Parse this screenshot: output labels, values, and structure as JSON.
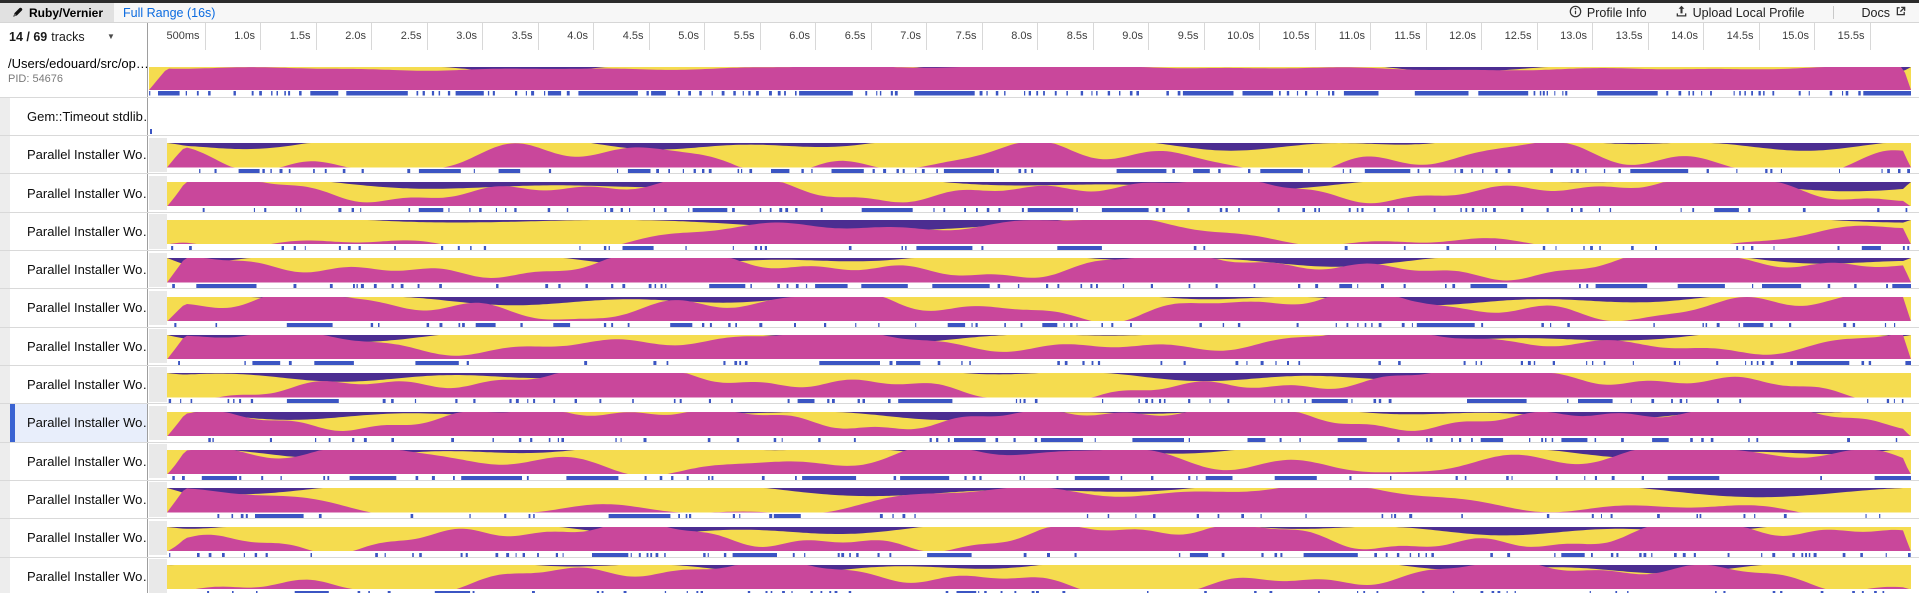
{
  "colors": {
    "magenta": "#c9479b",
    "purple": "#4b2d91",
    "yellow": "#f5dc4f",
    "tick": "#3b55c3",
    "selected_bg": "#e8eefb",
    "selected_bar": "#3a63d2",
    "link": "#0b6be0"
  },
  "header": {
    "tab_label": "Ruby/Vernier",
    "range_label": "Full Range (16s)",
    "actions": {
      "profile_info": "Profile Info",
      "upload": "Upload Local Profile",
      "docs": "Docs"
    }
  },
  "ruler": {
    "tracks_shown": "14 / 69",
    "tracks_suffix": "tracks",
    "tick_labels": [
      "500ms",
      "1.0s",
      "1.5s",
      "2.0s",
      "2.5s",
      "3.0s",
      "3.5s",
      "4.0s",
      "4.5s",
      "5.0s",
      "5.5s",
      "6.0s",
      "6.5s",
      "7.0s",
      "7.5s",
      "8.0s",
      "8.5s",
      "9.0s",
      "9.5s",
      "10.0s",
      "10.5s",
      "11.0s",
      "11.5s",
      "12.0s",
      "12.5s",
      "13.0s",
      "13.5s",
      "14.0s",
      "14.5s",
      "15.0s",
      "15.5s"
    ]
  },
  "tracks": [
    {
      "type": "process",
      "name": "/Users/edouard/src/op…",
      "pid": "PID: 54676",
      "wave": {
        "seed": 1,
        "base": 0.96,
        "amps": [
          0.07,
          0.04,
          0.02
        ],
        "freqs": [
          0.006,
          0.02,
          0.05
        ],
        "pbase": -0.02,
        "pamps": [
          0.16,
          0.1
        ],
        "pfreqs": [
          0.012,
          0.03
        ]
      },
      "ticks": {
        "seed": 20,
        "density": 0.8,
        "dense": 0.5
      }
    },
    {
      "type": "thread-empty",
      "name": "Gem::Timeout stdlib…"
    },
    {
      "type": "thread",
      "name": "Parallel Installer Wo…",
      "selected": false,
      "wave": {
        "seed": 2,
        "base": 0.34,
        "amps": [
          0.46,
          0.28,
          0.12
        ],
        "freqs": [
          0.011,
          0.03,
          0.07
        ],
        "pbase": 0.0,
        "pamps": [
          0.2,
          0.12
        ],
        "pfreqs": [
          0.009,
          0.027
        ]
      },
      "ticks": {
        "seed": 21,
        "density": 0.5,
        "dense": 0.6
      }
    },
    {
      "type": "thread",
      "name": "Parallel Installer Wo…",
      "selected": false,
      "wave": {
        "seed": 3,
        "base": 0.72,
        "amps": [
          0.34,
          0.22,
          0.1
        ],
        "freqs": [
          0.01,
          0.028,
          0.066
        ],
        "pbase": 0.06,
        "pamps": [
          0.2,
          0.12
        ],
        "pfreqs": [
          0.008,
          0.024
        ]
      },
      "ticks": {
        "seed": 22,
        "density": 0.45,
        "dense": 0.4
      }
    },
    {
      "type": "thread",
      "name": "Parallel Installer Wo…",
      "selected": false,
      "wave": {
        "seed": 4,
        "base": 0.4,
        "amps": [
          0.52,
          0.26,
          0.08
        ],
        "freqs": [
          0.006,
          0.018,
          0.045
        ],
        "pbase": -0.05,
        "pamps": [
          0.32,
          0.18
        ],
        "pfreqs": [
          0.005,
          0.016
        ]
      },
      "ticks": {
        "seed": 23,
        "density": 0.3,
        "dense": 0.3
      }
    },
    {
      "type": "thread",
      "name": "Parallel Installer Wo…",
      "selected": false,
      "wave": {
        "seed": 5,
        "base": 0.68,
        "amps": [
          0.36,
          0.22,
          0.1
        ],
        "freqs": [
          0.01,
          0.028,
          0.066
        ],
        "pbase": 0.04,
        "pamps": [
          0.2,
          0.12
        ],
        "pfreqs": [
          0.008,
          0.024
        ]
      },
      "ticks": {
        "seed": 24,
        "density": 0.5,
        "dense": 0.4
      }
    },
    {
      "type": "thread",
      "name": "Parallel Installer Wo…",
      "selected": false,
      "wave": {
        "seed": 6,
        "base": 0.64,
        "amps": [
          0.4,
          0.24,
          0.1
        ],
        "freqs": [
          0.01,
          0.028,
          0.066
        ],
        "pbase": 0.03,
        "pamps": [
          0.2,
          0.12
        ],
        "pfreqs": [
          0.008,
          0.024
        ]
      },
      "ticks": {
        "seed": 25,
        "density": 0.45,
        "dense": 0.35
      }
    },
    {
      "type": "thread",
      "name": "Parallel Installer Wo…",
      "selected": false,
      "wave": {
        "seed": 7,
        "base": 0.74,
        "amps": [
          0.34,
          0.2,
          0.1
        ],
        "freqs": [
          0.01,
          0.028,
          0.066
        ],
        "pbase": 0.05,
        "pamps": [
          0.2,
          0.12
        ],
        "pfreqs": [
          0.008,
          0.024
        ]
      },
      "ticks": {
        "seed": 26,
        "density": 0.4,
        "dense": 0.3
      }
    },
    {
      "type": "thread",
      "name": "Parallel Installer Wo…",
      "selected": false,
      "wave": {
        "seed": 8,
        "base": 0.55,
        "amps": [
          0.44,
          0.26,
          0.1
        ],
        "freqs": [
          0.008,
          0.024,
          0.06
        ],
        "pbase": 0.02,
        "pamps": [
          0.22,
          0.12
        ],
        "pfreqs": [
          0.008,
          0.024
        ]
      },
      "ticks": {
        "seed": 27,
        "density": 0.4,
        "dense": 0.45
      }
    },
    {
      "type": "thread",
      "name": "Parallel Installer Wo…",
      "selected": true,
      "wave": {
        "seed": 9,
        "base": 0.8,
        "amps": [
          0.3,
          0.2,
          0.09
        ],
        "freqs": [
          0.01,
          0.028,
          0.066
        ],
        "pbase": 0.04,
        "pamps": [
          0.18,
          0.11
        ],
        "pfreqs": [
          0.008,
          0.024
        ]
      },
      "ticks": {
        "seed": 28,
        "density": 0.45,
        "dense": 0.4
      }
    },
    {
      "type": "thread",
      "name": "Parallel Installer Wo…",
      "selected": false,
      "wave": {
        "seed": 10,
        "base": 0.62,
        "amps": [
          0.4,
          0.24,
          0.1
        ],
        "freqs": [
          0.01,
          0.028,
          0.066
        ],
        "pbase": 0.03,
        "pamps": [
          0.2,
          0.12
        ],
        "pfreqs": [
          0.008,
          0.024
        ]
      },
      "ticks": {
        "seed": 29,
        "density": 0.45,
        "dense": 0.9
      }
    },
    {
      "type": "thread",
      "name": "Parallel Installer Wo…",
      "selected": false,
      "wave": {
        "seed": 11,
        "base": 0.48,
        "amps": [
          0.5,
          0.26,
          0.1
        ],
        "freqs": [
          0.006,
          0.02,
          0.05
        ],
        "pbase": -0.02,
        "pamps": [
          0.26,
          0.14
        ],
        "pfreqs": [
          0.006,
          0.02
        ]
      },
      "ticks": {
        "seed": 30,
        "density": 0.3,
        "dense": 0.3
      }
    },
    {
      "type": "thread",
      "name": "Parallel Installer Wo…",
      "selected": false,
      "wave": {
        "seed": 12,
        "base": 0.6,
        "amps": [
          0.4,
          0.24,
          0.1
        ],
        "freqs": [
          0.01,
          0.028,
          0.066
        ],
        "pbase": 0.03,
        "pamps": [
          0.2,
          0.12
        ],
        "pfreqs": [
          0.008,
          0.024
        ]
      },
      "ticks": {
        "seed": 31,
        "density": 0.4,
        "dense": 0.35
      }
    },
    {
      "type": "thread",
      "name": "Parallel Installer Wo…",
      "selected": false,
      "wave": {
        "seed": 13,
        "base": 0.5,
        "amps": [
          0.46,
          0.26,
          0.1
        ],
        "freqs": [
          0.007,
          0.022,
          0.055
        ],
        "pbase": 0.0,
        "pamps": [
          0.24,
          0.13
        ],
        "pfreqs": [
          0.007,
          0.022
        ]
      },
      "ticks": {
        "seed": 32,
        "density": 0.3,
        "dense": 0.3
      }
    }
  ]
}
